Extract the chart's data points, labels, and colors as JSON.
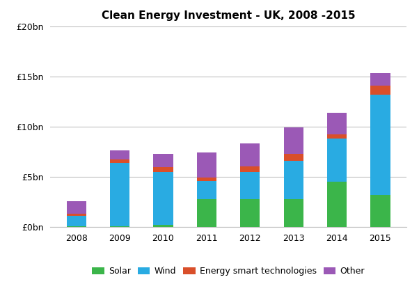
{
  "title": "Clean Energy Investment - UK, 2008 -2015",
  "years": [
    2008,
    2009,
    2010,
    2011,
    2012,
    2013,
    2014,
    2015
  ],
  "solar": [
    0.1,
    0.1,
    0.2,
    2.8,
    2.8,
    2.8,
    4.5,
    3.2
  ],
  "wind": [
    1.0,
    6.3,
    5.3,
    1.8,
    2.7,
    3.8,
    4.3,
    10.0
  ],
  "energy_smart": [
    0.25,
    0.3,
    0.45,
    0.35,
    0.55,
    0.7,
    0.45,
    0.9
  ],
  "other": [
    1.25,
    0.9,
    1.3,
    2.5,
    2.3,
    2.6,
    2.15,
    1.2
  ],
  "colors": {
    "solar": "#3BB54A",
    "wind": "#29ABE2",
    "energy_smart": "#D94F2A",
    "other": "#9B59B6"
  },
  "ylim": [
    0,
    20
  ],
  "ytick_vals": [
    0,
    5,
    10,
    15,
    20
  ],
  "ytick_labels": [
    "£0bn",
    "£5bn",
    "£10bn",
    "£15bn",
    "£20bn"
  ],
  "background_color": "#ffffff",
  "grid_color": "#c0c0c0",
  "bar_width": 0.45,
  "title_fontsize": 11,
  "tick_fontsize": 9,
  "legend_fontsize": 9
}
